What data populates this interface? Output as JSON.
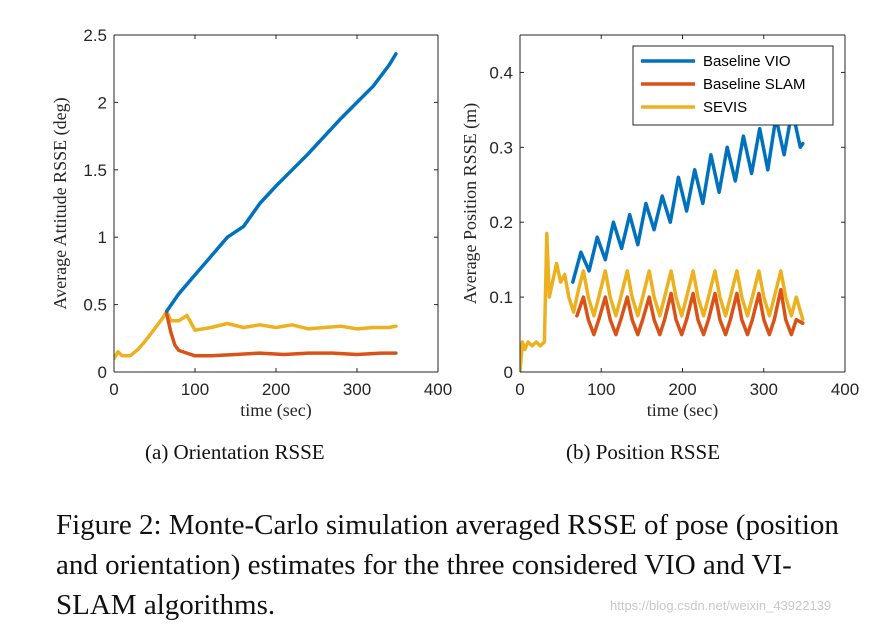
{
  "figure": {
    "caption": "Figure 2: Monte-Carlo simulation averaged RSSE of pose (position and orientation) estimates for the three considered VIO and VI-SLAM algorithms.",
    "watermark": "https://blog.csdn.net/weixin_43922139",
    "colors": {
      "vio": "#0072BD",
      "slam": "#D95319",
      "sevis": "#EDB120"
    }
  },
  "chart_data": [
    {
      "type": "line",
      "subcaption": "(a) Orientation RSSE",
      "xlabel": "time (sec)",
      "ylabel": "Average Attitude RSSE (deg)",
      "xlim": [
        0,
        400
      ],
      "ylim": [
        0,
        2.5
      ],
      "xticks": [
        0,
        100,
        200,
        300,
        400
      ],
      "xticklabels": [
        "0",
        "100",
        "200",
        "300",
        "400"
      ],
      "yticks": [
        0,
        0.5,
        1,
        1.5,
        2,
        2.5
      ],
      "yticklabels": [
        "0",
        "0.5",
        "1",
        "1.5",
        "2",
        "2.5"
      ],
      "legend": null,
      "series": [
        {
          "name": "Baseline VIO",
          "color": "#0072BD",
          "x": [
            65,
            80,
            100,
            120,
            140,
            160,
            180,
            200,
            220,
            240,
            260,
            280,
            300,
            320,
            340,
            348
          ],
          "y": [
            0.45,
            0.58,
            0.72,
            0.86,
            1.0,
            1.08,
            1.25,
            1.38,
            1.5,
            1.62,
            1.75,
            1.88,
            2.0,
            2.12,
            2.28,
            2.36
          ]
        },
        {
          "name": "Baseline SLAM",
          "color": "#D95319",
          "x": [
            65,
            70,
            75,
            80,
            90,
            100,
            120,
            150,
            180,
            210,
            240,
            270,
            300,
            330,
            348
          ],
          "y": [
            0.43,
            0.3,
            0.2,
            0.16,
            0.14,
            0.12,
            0.12,
            0.13,
            0.14,
            0.13,
            0.14,
            0.14,
            0.13,
            0.14,
            0.14
          ]
        },
        {
          "name": "SEVIS",
          "color": "#EDB120",
          "x": [
            0,
            5,
            10,
            20,
            30,
            40,
            50,
            60,
            65,
            70,
            80,
            90,
            100,
            120,
            140,
            160,
            180,
            200,
            220,
            240,
            260,
            280,
            300,
            320,
            340,
            348
          ],
          "y": [
            0.1,
            0.15,
            0.12,
            0.12,
            0.17,
            0.24,
            0.32,
            0.4,
            0.45,
            0.38,
            0.38,
            0.42,
            0.31,
            0.33,
            0.36,
            0.33,
            0.35,
            0.33,
            0.35,
            0.32,
            0.33,
            0.34,
            0.32,
            0.33,
            0.33,
            0.34
          ]
        }
      ]
    },
    {
      "type": "line",
      "subcaption": "(b) Position RSSE",
      "xlabel": "time (sec)",
      "ylabel": "Average Position RSSE (m)",
      "xlim": [
        0,
        400
      ],
      "ylim": [
        0,
        0.45
      ],
      "xticks": [
        0,
        100,
        200,
        300,
        400
      ],
      "xticklabels": [
        "0",
        "100",
        "200",
        "300",
        "400"
      ],
      "yticks": [
        0,
        0.1,
        0.2,
        0.3,
        0.4
      ],
      "yticklabels": [
        "0",
        "0.1",
        "0.2",
        "0.3",
        "0.4"
      ],
      "legend": "top-right",
      "series": [
        {
          "name": "Baseline VIO",
          "color": "#0072BD",
          "x": [
            65,
            75,
            85,
            95,
            105,
            115,
            125,
            135,
            145,
            155,
            165,
            175,
            185,
            195,
            205,
            215,
            225,
            235,
            245,
            255,
            265,
            275,
            285,
            295,
            305,
            315,
            325,
            335,
            345,
            348
          ],
          "y": [
            0.12,
            0.16,
            0.135,
            0.18,
            0.15,
            0.2,
            0.165,
            0.21,
            0.17,
            0.225,
            0.19,
            0.235,
            0.2,
            0.26,
            0.215,
            0.27,
            0.225,
            0.29,
            0.24,
            0.3,
            0.255,
            0.315,
            0.265,
            0.325,
            0.27,
            0.34,
            0.29,
            0.35,
            0.3,
            0.305
          ]
        },
        {
          "name": "Baseline SLAM",
          "color": "#D95319",
          "x": [
            70,
            78,
            84,
            91,
            97,
            105,
            111,
            118,
            124,
            132,
            138,
            145,
            151,
            159,
            165,
            172,
            178,
            186,
            192,
            199,
            205,
            213,
            219,
            226,
            232,
            240,
            246,
            253,
            259,
            267,
            273,
            280,
            286,
            294,
            300,
            307,
            313,
            321,
            327,
            334,
            340,
            348
          ],
          "y": [
            0.075,
            0.1,
            0.07,
            0.05,
            0.07,
            0.1,
            0.07,
            0.05,
            0.07,
            0.1,
            0.07,
            0.05,
            0.07,
            0.1,
            0.07,
            0.05,
            0.07,
            0.105,
            0.07,
            0.05,
            0.07,
            0.105,
            0.07,
            0.05,
            0.07,
            0.105,
            0.07,
            0.05,
            0.07,
            0.105,
            0.07,
            0.05,
            0.07,
            0.105,
            0.07,
            0.05,
            0.07,
            0.11,
            0.07,
            0.05,
            0.07,
            0.065
          ]
        },
        {
          "name": "SEVIS",
          "color": "#EDB120",
          "x": [
            0,
            3,
            6,
            10,
            15,
            20,
            25,
            30,
            33,
            36,
            40,
            45,
            50,
            55,
            60,
            66,
            72,
            78,
            84,
            91,
            97,
            105,
            111,
            118,
            124,
            132,
            138,
            145,
            151,
            159,
            165,
            172,
            178,
            186,
            192,
            199,
            205,
            213,
            219,
            226,
            232,
            240,
            246,
            253,
            259,
            267,
            273,
            280,
            286,
            294,
            300,
            307,
            313,
            321,
            327,
            334,
            340,
            348
          ],
          "y": [
            0.0,
            0.04,
            0.03,
            0.04,
            0.035,
            0.04,
            0.035,
            0.04,
            0.185,
            0.1,
            0.12,
            0.145,
            0.12,
            0.13,
            0.1,
            0.08,
            0.11,
            0.135,
            0.1,
            0.075,
            0.1,
            0.135,
            0.1,
            0.075,
            0.1,
            0.135,
            0.1,
            0.075,
            0.1,
            0.135,
            0.1,
            0.075,
            0.1,
            0.135,
            0.1,
            0.075,
            0.1,
            0.135,
            0.1,
            0.075,
            0.1,
            0.135,
            0.1,
            0.075,
            0.1,
            0.135,
            0.1,
            0.075,
            0.1,
            0.135,
            0.1,
            0.075,
            0.1,
            0.135,
            0.1,
            0.075,
            0.1,
            0.07
          ]
        }
      ]
    }
  ]
}
